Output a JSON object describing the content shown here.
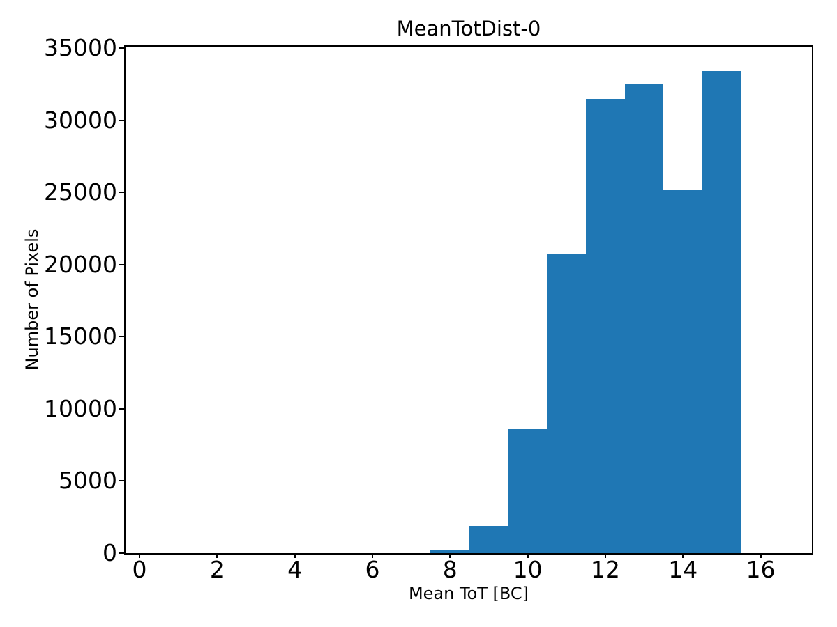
{
  "chart_data": {
    "type": "bar",
    "subtype": "histogram",
    "title": "MeanTotDist-0",
    "xlabel": "Mean ToT [BC]",
    "ylabel": "Number of Pixels",
    "bin_edges": [
      7.5,
      8.5,
      9.5,
      10.5,
      11.5,
      12.5,
      13.5,
      14.5,
      15.5
    ],
    "counts": [
      250,
      1900,
      8600,
      20750,
      31500,
      32500,
      25150,
      33400
    ],
    "bar_color": "#1f77b4",
    "axis_color": "#000000",
    "background_color": "#ffffff",
    "xlim": [
      -0.36,
      17.32
    ],
    "ylim": [
      0,
      35100
    ],
    "x_ticks": [
      0,
      2,
      4,
      6,
      8,
      10,
      12,
      14,
      16
    ],
    "y_ticks": [
      0,
      5000,
      10000,
      15000,
      20000,
      25000,
      30000,
      35000
    ],
    "grid": false,
    "legend": null
  }
}
